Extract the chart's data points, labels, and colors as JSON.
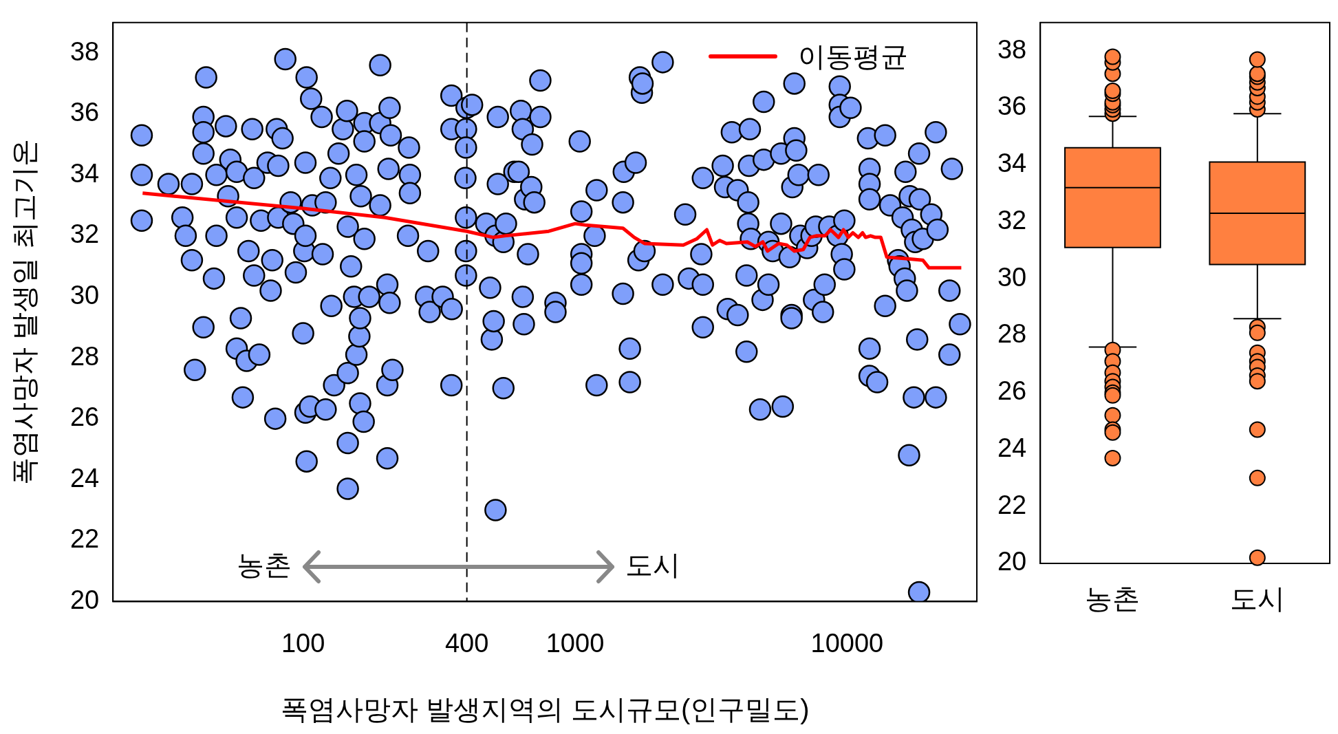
{
  "chart_data": [
    {
      "type": "scatter",
      "xlabel": "폭염사망자 발생지역의 도시규모(인구밀도)",
      "ylabel": "폭염사망자 발생일 최고기온",
      "log": "x",
      "xlim": [
        20,
        30000
      ],
      "xticks": [
        100,
        400,
        1000,
        10000
      ],
      "ylim": [
        20,
        39
      ],
      "yticks": [
        20,
        22,
        24,
        26,
        28,
        30,
        32,
        34,
        36,
        38
      ],
      "grid": false,
      "legend": "top right",
      "marker": "circle",
      "ref_lines": [
        {
          "axis": "x",
          "value": 400,
          "color": "#000000",
          "line_style": "dashed"
        }
      ],
      "annotations": [
        "농촌",
        "도시"
      ],
      "series": [
        {
          "type": "scatter",
          "color": "#7f9ffb",
          "x": [
            25.5,
            25.5,
            25.5,
            32,
            36,
            39,
            37,
            39,
            40,
            43,
            44,
            43,
            43,
            43,
            48,
            48,
            47,
            52,
            53,
            54,
            57,
            57,
            59,
            57,
            60,
            62,
            65,
            66,
            63,
            69,
            70,
            66,
            74,
            76,
            80,
            81,
            79,
            84,
            86,
            81,
            77,
            90,
            92,
            94,
            100,
            101,
            102,
            103,
            107,
            102,
            102,
            106,
            103,
            108,
            117,
            118,
            121,
            127,
            126,
            121,
            130,
            135,
            140,
            145,
            146,
            146,
            146,
            146,
            150,
            157,
            157,
            161,
            162,
            162,
            154,
            167,
            163,
            168,
            175,
            168,
            168,
            192,
            192,
            192,
            204,
            204,
            204,
            206,
            208,
            210,
            213,
            208,
            243,
            245,
            247,
            247,
            288,
            283,
            292,
            326,
            351,
            352,
            351,
            351,
            395,
            397,
            397,
            397,
            399,
            397,
            397,
            418,
            471,
            487,
            494,
            502,
            510,
            510,
            520,
            520,
            545,
            545,
            557,
            598,
            620,
            632,
            642,
            642,
            648,
            655,
            671,
            690,
            695,
            708,
            745,
            745,
            847,
            847,
            1040,
            1055,
            1055,
            1055,
            1055,
            1200,
            1200,
            1180,
            1500,
            1500,
            1510,
            1590,
            1590,
            1670,
            1710,
            1730,
            1760,
            1770,
            1800,
            2100,
            2100,
            2540,
            2620,
            2910,
            2950,
            2950,
            2950,
            3490,
            3560,
            3640,
            3770,
            3960,
            3960,
            4270,
            4330,
            4390,
            4360,
            4270,
            4330,
            4430,
            4790,
            4890,
            4940,
            4940,
            5140,
            5140,
            5330,
            5720,
            5720,
            5800,
            6150,
            6250,
            6250,
            6290,
            6400,
            6400,
            6500,
            6630,
            6730,
            7130,
            7400,
            7560,
            7670,
            7850,
            8150,
            8270,
            8600,
            9230,
            9400,
            9400,
            9400,
            9560,
            9770,
            9770,
            10300,
            11940,
            12100,
            12100,
            12100,
            12100,
            12100,
            12900,
            13800,
            13800,
            14400,
            15400,
            15600,
            16000,
            16300,
            16400,
            16600,
            16900,
            17000,
            17300,
            17600,
            17800,
            18100,
            18400,
            18400,
            18500,
            19000,
            20400,
            21200,
            21200,
            21500,
            23800,
            23800,
            24300,
            26000
          ],
          "values": [
            35.3,
            34.0,
            32.5,
            33.7,
            32.6,
            33.7,
            32.0,
            31.2,
            27.6,
            29.0,
            37.2,
            35.9,
            35.4,
            34.7,
            34.0,
            32.0,
            30.6,
            35.6,
            33.3,
            34.5,
            32.6,
            34.1,
            29.3,
            28.3,
            26.7,
            27.9,
            35.5,
            33.9,
            31.5,
            28.1,
            32.5,
            30.7,
            34.4,
            30.2,
            35.5,
            32.6,
            26.0,
            35.2,
            37.8,
            34.3,
            31.2,
            33.1,
            32.4,
            30.8,
            28.8,
            31.5,
            32.0,
            37.2,
            36.5,
            34.4,
            26.2,
            26.4,
            24.6,
            33.0,
            35.9,
            31.4,
            26.3,
            29.7,
            33.9,
            33.1,
            27.1,
            34.7,
            35.5,
            36.1,
            32.3,
            23.7,
            25.2,
            27.5,
            31.0,
            34.0,
            28.1,
            28.7,
            29.3,
            26.5,
            30.0,
            25.9,
            33.3,
            31.9,
            30.0,
            35.7,
            35.1,
            37.6,
            33.0,
            35.7,
            30.4,
            27.1,
            24.7,
            34.2,
            36.2,
            35.3,
            27.6,
            29.8,
            32.0,
            34.9,
            34.0,
            33.4,
            31.5,
            30.0,
            29.5,
            30.0,
            27.1,
            29.6,
            36.6,
            35.5,
            33.9,
            32.6,
            31.5,
            30.7,
            36.2,
            35.5,
            34.9,
            36.3,
            32.4,
            30.3,
            28.6,
            29.2,
            23.0,
            32.0,
            35.9,
            33.7,
            27.0,
            31.8,
            32.4,
            34.1,
            34.1,
            36.1,
            35.5,
            30.0,
            29.1,
            33.2,
            31.4,
            33.6,
            35.0,
            33.1,
            37.1,
            35.9,
            29.8,
            29.5,
            35.1,
            32.8,
            31.4,
            30.4,
            31.1,
            33.5,
            27.1,
            32.0,
            33.1,
            30.1,
            34.1,
            28.3,
            27.2,
            34.4,
            31.2,
            37.2,
            36.7,
            37.0,
            31.5,
            37.7,
            30.4,
            32.7,
            30.6,
            31.4,
            29.0,
            30.4,
            33.9,
            34.3,
            33.6,
            29.6,
            35.4,
            29.4,
            33.5,
            28.2,
            33.1,
            35.5,
            34.3,
            30.7,
            32.4,
            31.9,
            26.3,
            29.9,
            36.4,
            34.5,
            31.8,
            30.4,
            31.5,
            32.4,
            34.7,
            26.4,
            31.3,
            29.4,
            29.3,
            33.6,
            37.0,
            35.2,
            34.8,
            34.0,
            32.0,
            31.6,
            32.0,
            29.9,
            32.3,
            34.0,
            29.5,
            30.4,
            32.3,
            32.0,
            36.9,
            36.3,
            35.9,
            31.4,
            32.5,
            30.9,
            36.2,
            35.2,
            28.3,
            27.4,
            34.2,
            33.7,
            33.2,
            27.2,
            35.3,
            29.7,
            33.0,
            31.2,
            31.0,
            32.6,
            30.6,
            34.1,
            30.2,
            24.8,
            33.3,
            32.2,
            26.7,
            31.8,
            28.6,
            34.7,
            20.3,
            33.2,
            31.9,
            32.7,
            35.4,
            26.7,
            32.2,
            28.1,
            30.2,
            34.2,
            29.1
          ]
        },
        {
          "type": "line",
          "name": "이동평균",
          "color": "#ff0000",
          "line_style": "solid",
          "marker": "none",
          "x": [
            25.7,
            100,
            200,
            400,
            500,
            550,
            800,
            1000,
            1100,
            1500,
            1650,
            1800,
            2500,
            2800,
            3050,
            3200,
            3400,
            3600,
            4300,
            4600,
            4900,
            5100,
            5600,
            6000,
            6400,
            6900,
            7300,
            7700,
            8300,
            8700,
            9300,
            9700,
            10100,
            10500,
            11000,
            11400,
            11700,
            12200,
            12700,
            13300,
            14000,
            16500,
            19000,
            20000,
            26300
          ],
          "values": [
            33.4,
            32.9,
            32.6,
            32.15,
            31.95,
            32.0,
            32.15,
            32.4,
            32.35,
            32.25,
            31.95,
            31.75,
            31.7,
            31.9,
            32.2,
            31.7,
            31.85,
            31.75,
            31.8,
            31.65,
            31.8,
            31.5,
            31.75,
            31.7,
            31.5,
            31.55,
            31.95,
            32.0,
            32.0,
            32.2,
            31.95,
            32.2,
            31.95,
            32.1,
            31.95,
            32.1,
            31.95,
            32.0,
            31.95,
            31.95,
            31.3,
            31.25,
            31.2,
            30.95,
            30.95
          ]
        }
      ]
    },
    {
      "type": "box",
      "categories": [
        "농촌",
        "도시"
      ],
      "ylim": [
        20,
        39
      ],
      "yticks": [
        20,
        22,
        24,
        26,
        28,
        30,
        32,
        34,
        36,
        38
      ],
      "grid": false,
      "legend": false,
      "marker": "circle",
      "series": [
        {
          "color": "#ff8040",
          "boxes": [
            {
              "low": 27.6,
              "q1": 31.1,
              "median": 33.2,
              "q3": 34.6,
              "high": 35.7,
              "outliers": [
                35.8,
                35.95,
                36.1,
                36.2,
                36.5,
                36.6,
                37.2,
                37.6,
                37.8,
                27.5,
                27.1,
                26.7,
                26.4,
                26.2,
                26.0,
                25.9,
                25.2,
                24.7,
                24.6,
                23.7
              ]
            },
            {
              "low": 28.6,
              "q1": 30.5,
              "median": 32.3,
              "q3": 34.1,
              "high": 35.8,
              "outliers": [
                35.95,
                36.2,
                36.4,
                36.7,
                36.9,
                37.1,
                37.2,
                37.7,
                28.3,
                28.1,
                27.4,
                27.1,
                26.9,
                26.6,
                26.4,
                24.7,
                23.0,
                20.2
              ]
            }
          ]
        }
      ]
    }
  ]
}
